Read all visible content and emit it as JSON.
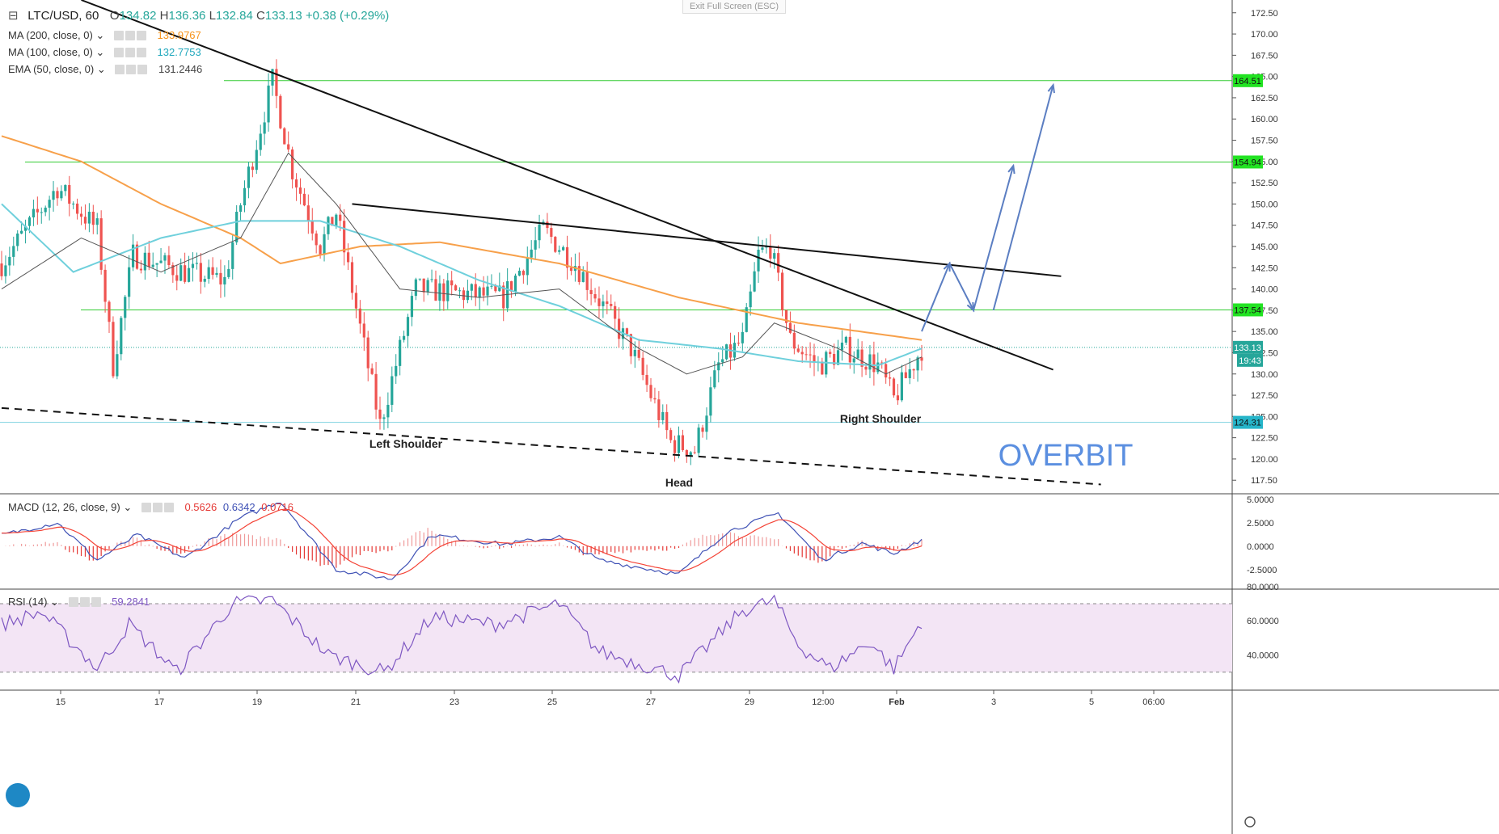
{
  "header": {
    "symbol": "LTC/USD, 60",
    "open_label": "O",
    "open": "134.82",
    "high_label": "H",
    "high": "136.36",
    "low_label": "L",
    "low": "132.84",
    "close_label": "C",
    "close": "133.13",
    "change": "+0.38 (+0.29%)"
  },
  "indicators": [
    {
      "name": "MA (200, close, 0)",
      "value": "133.9767",
      "color": "#f7931a"
    },
    {
      "name": "MA (100, close, 0)",
      "value": "132.7753",
      "color": "#4ec5d4"
    },
    {
      "name": "EMA (50, close, 0)",
      "value": "131.2446",
      "color": "#555555"
    }
  ],
  "macd_legend": {
    "name": "MACD (12, 26, close, 9)",
    "hist": "0.5626",
    "macd": "0.6342",
    "signal": "0.0716"
  },
  "rsi_legend": {
    "name": "RSI (14)",
    "value": "59.2841"
  },
  "exit_fullscreen": "Exit Full Screen (ESC)",
  "watermark": "OVERBIT",
  "pattern_labels": {
    "left": "Left Shoulder",
    "head": "Head",
    "right": "Right Shoulder"
  },
  "colors": {
    "up": "#26a69a",
    "down": "#ef5350",
    "level": "#33cc33",
    "macd": "#3f51b5",
    "signal": "#f44336",
    "rsi": "#7e57c2",
    "rsi_band": "#f3e5f5",
    "arrows": "#5b7ec2"
  },
  "chart_data": {
    "type": "candlestick",
    "ylim": [
      116,
      174
    ],
    "y_ticks": [
      "172.50",
      "170.00",
      "167.50",
      "165.00",
      "162.50",
      "160.00",
      "157.50",
      "155.00",
      "152.50",
      "150.00",
      "147.50",
      "145.00",
      "142.50",
      "140.00",
      "137.50",
      "135.00",
      "132.50",
      "130.00",
      "127.50",
      "125.00",
      "122.50",
      "120.00",
      "117.50"
    ],
    "x_ticks": [
      "15",
      "17",
      "19",
      "21",
      "23",
      "25",
      "27",
      "29",
      "12:00",
      "Feb",
      "3",
      "5",
      "06:00"
    ],
    "price_path": [
      [
        0,
        143
      ],
      [
        14,
        152
      ],
      [
        24,
        147
      ],
      [
        28,
        131
      ],
      [
        33,
        144
      ],
      [
        46,
        142
      ],
      [
        56,
        141
      ],
      [
        60,
        150
      ],
      [
        68,
        164.5
      ],
      [
        73,
        154
      ],
      [
        80,
        145
      ],
      [
        84,
        149
      ],
      [
        88,
        140
      ],
      [
        95,
        124
      ],
      [
        104,
        140
      ],
      [
        126,
        139
      ],
      [
        136,
        147
      ],
      [
        144,
        143
      ],
      [
        158,
        133
      ],
      [
        168,
        122
      ],
      [
        174,
        121
      ],
      [
        180,
        131
      ],
      [
        186,
        134
      ],
      [
        190,
        144
      ],
      [
        193,
        145
      ],
      [
        198,
        134
      ],
      [
        205,
        131
      ],
      [
        212,
        133
      ],
      [
        220,
        131
      ],
      [
        224,
        127
      ],
      [
        231,
        133
      ]
    ],
    "candles_count": 232,
    "levels": [
      164.51,
      154.94,
      137.54,
      124.31
    ],
    "level_labels": [
      "164.51",
      "154.94",
      "137.54",
      "124.31"
    ],
    "last_price": "133.13",
    "timer": "19:43",
    "ma200": [
      [
        0,
        158
      ],
      [
        20,
        155
      ],
      [
        40,
        150
      ],
      [
        60,
        146
      ],
      [
        70,
        143
      ],
      [
        90,
        145
      ],
      [
        110,
        145.5
      ],
      [
        140,
        143
      ],
      [
        170,
        139
      ],
      [
        200,
        136
      ],
      [
        231,
        134
      ]
    ],
    "ma100": [
      [
        0,
        150
      ],
      [
        18,
        142
      ],
      [
        40,
        146
      ],
      [
        60,
        148
      ],
      [
        80,
        148
      ],
      [
        100,
        145
      ],
      [
        120,
        141
      ],
      [
        140,
        138
      ],
      [
        160,
        134
      ],
      [
        180,
        133
      ],
      [
        200,
        131.5
      ],
      [
        220,
        131
      ],
      [
        231,
        133
      ]
    ],
    "ema50": [
      [
        0,
        140
      ],
      [
        20,
        146
      ],
      [
        40,
        142
      ],
      [
        60,
        146
      ],
      [
        72,
        156
      ],
      [
        84,
        150
      ],
      [
        100,
        140
      ],
      [
        120,
        139
      ],
      [
        140,
        140
      ],
      [
        160,
        133
      ],
      [
        172,
        130
      ],
      [
        186,
        132
      ],
      [
        194,
        136
      ],
      [
        210,
        133
      ],
      [
        222,
        130
      ],
      [
        231,
        132
      ]
    ],
    "trendlines": {
      "upper": [
        [
          20,
          174
        ],
        [
          264,
          130.5
        ]
      ],
      "neckline": [
        [
          88,
          150
        ],
        [
          266,
          141.5
        ]
      ],
      "support_dashed": [
        [
          0,
          126
        ],
        [
          276,
          117
        ]
      ],
      "arrows": [
        [
          231,
          135
        ],
        [
          238,
          143
        ],
        [
          244,
          137.5
        ],
        [
          254,
          154.5
        ],
        [
          249,
          137.5
        ],
        [
          264,
          164
        ]
      ]
    },
    "macd": {
      "ylim": [
        -4.5,
        5.5
      ],
      "y_ticks": [
        "5.0000",
        "2.5000",
        "0.0000",
        "-2.5000"
      ],
      "path": [
        [
          0,
          1.2
        ],
        [
          14,
          2.5
        ],
        [
          24,
          -1.5
        ],
        [
          34,
          1.2
        ],
        [
          46,
          -1.3
        ],
        [
          60,
          3.0
        ],
        [
          70,
          4.8
        ],
        [
          84,
          -2.5
        ],
        [
          98,
          -3.5
        ],
        [
          108,
          1.2
        ],
        [
          126,
          0.2
        ],
        [
          140,
          1.0
        ],
        [
          150,
          -1.5
        ],
        [
          170,
          -3.0
        ],
        [
          182,
          1.5
        ],
        [
          195,
          3.5
        ],
        [
          206,
          -1.5
        ],
        [
          216,
          0.3
        ],
        [
          224,
          -0.8
        ],
        [
          231,
          0.7
        ]
      ]
    },
    "rsi": {
      "ylim": [
        20,
        78
      ],
      "y_ticks": [
        "80.0000",
        "60.0000",
        "40.0000"
      ],
      "bands": [
        70,
        30
      ],
      "path": [
        [
          0,
          58
        ],
        [
          10,
          65
        ],
        [
          20,
          42
        ],
        [
          24,
          32
        ],
        [
          32,
          58
        ],
        [
          44,
          30
        ],
        [
          58,
          70
        ],
        [
          68,
          72
        ],
        [
          82,
          40
        ],
        [
          96,
          30
        ],
        [
          108,
          62
        ],
        [
          124,
          58
        ],
        [
          140,
          70
        ],
        [
          150,
          42
        ],
        [
          170,
          28
        ],
        [
          186,
          66
        ],
        [
          194,
          72
        ],
        [
          200,
          46
        ],
        [
          208,
          32
        ],
        [
          218,
          48
        ],
        [
          224,
          32
        ],
        [
          231,
          60
        ]
      ]
    }
  }
}
